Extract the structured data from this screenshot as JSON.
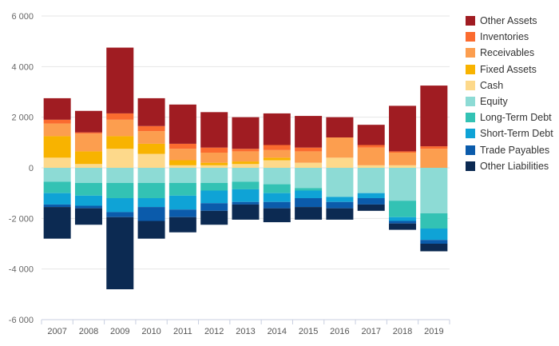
{
  "chart_data": {
    "type": "bar",
    "stacked": true,
    "categories": [
      "2007",
      "2008",
      "2009",
      "2010",
      "2011",
      "2012",
      "2013",
      "2014",
      "2015",
      "2016",
      "2017",
      "2018",
      "2019"
    ],
    "ylim": [
      -6000,
      6000
    ],
    "yticks": [
      6000,
      4000,
      2000,
      0,
      -2000,
      -4000,
      -6000
    ],
    "ytick_labels": [
      "6 000",
      "4 000",
      "2 000",
      "0",
      "-2 000",
      "-4 000",
      "-6 000"
    ],
    "grid": true,
    "legend_position": "right",
    "series": [
      {
        "name": "Cash",
        "color": "#fdd98b",
        "values": [
          400,
          150,
          750,
          550,
          100,
          100,
          150,
          300,
          200,
          400,
          100,
          100,
          0
        ]
      },
      {
        "name": "Fixed Assets",
        "color": "#f8b300",
        "values": [
          850,
          500,
          500,
          400,
          200,
          100,
          100,
          100,
          0,
          0,
          0,
          0,
          0
        ]
      },
      {
        "name": "Receivables",
        "color": "#fc9e4f",
        "values": [
          500,
          700,
          650,
          500,
          450,
          400,
          400,
          300,
          450,
          800,
          700,
          500,
          750
        ]
      },
      {
        "name": "Inventories",
        "color": "#fb6b2f",
        "values": [
          150,
          50,
          250,
          200,
          200,
          200,
          100,
          200,
          150,
          0,
          100,
          50,
          100
        ]
      },
      {
        "name": "Other Assets",
        "color": "#a01c22",
        "values": [
          850,
          850,
          2600,
          1100,
          1550,
          1400,
          1250,
          1250,
          1250,
          800,
          800,
          1800,
          2400
        ]
      },
      {
        "name": "Equity",
        "color": "#8ddbd5",
        "values": [
          -550,
          -600,
          -600,
          -600,
          -600,
          -600,
          -550,
          -650,
          -800,
          -1150,
          -1000,
          -1300,
          -1800
        ]
      },
      {
        "name": "Long-Term Debt",
        "color": "#33c2b4",
        "values": [
          -450,
          -500,
          -600,
          -600,
          -500,
          -300,
          -300,
          -350,
          -100,
          0,
          0,
          -650,
          -600
        ]
      },
      {
        "name": "Short-Term Debt",
        "color": "#0fa3d6",
        "values": [
          -450,
          -400,
          -550,
          -350,
          -550,
          -500,
          -500,
          -350,
          -300,
          -200,
          -200,
          -150,
          -450
        ]
      },
      {
        "name": "Trade Payables",
        "color": "#0b5bab",
        "values": [
          -100,
          -100,
          -200,
          -550,
          -300,
          -300,
          -100,
          -250,
          -350,
          -250,
          -250,
          -100,
          -150
        ]
      },
      {
        "name": "Other Liabilities",
        "color": "#0c2a52",
        "values": [
          -1250,
          -650,
          -2850,
          -700,
          -600,
          -550,
          -600,
          -550,
          -500,
          -450,
          -250,
          -250,
          -300
        ]
      }
    ],
    "legend_order": [
      "Other Assets",
      "Inventories",
      "Receivables",
      "Fixed Assets",
      "Cash",
      "Equity",
      "Long-Term Debt",
      "Short-Term Debt",
      "Trade Payables",
      "Other Liabilities"
    ]
  }
}
